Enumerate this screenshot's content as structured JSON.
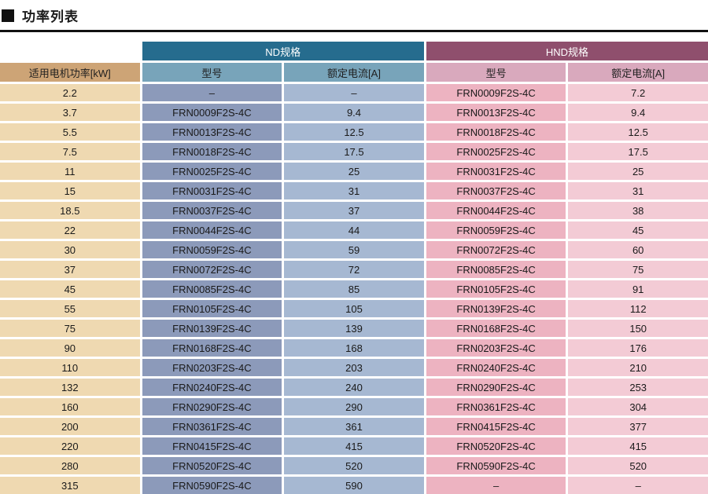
{
  "page": {
    "title_bullet": "■",
    "title": "功率列表"
  },
  "table": {
    "groups": {
      "nd": "ND规格",
      "hnd": "HND规格"
    },
    "column_headers": {
      "power": "适用电机功率[kW]",
      "model": "型号",
      "current": "额定电流[A]"
    },
    "rows": [
      {
        "power": "2.2",
        "nd_model": "–",
        "nd_current": "–",
        "hnd_model": "FRN0009F2S-4C",
        "hnd_current": "7.2"
      },
      {
        "power": "3.7",
        "nd_model": "FRN0009F2S-4C",
        "nd_current": "9.4",
        "hnd_model": "FRN0013F2S-4C",
        "hnd_current": "9.4"
      },
      {
        "power": "5.5",
        "nd_model": "FRN0013F2S-4C",
        "nd_current": "12.5",
        "hnd_model": "FRN0018F2S-4C",
        "hnd_current": "12.5"
      },
      {
        "power": "7.5",
        "nd_model": "FRN0018F2S-4C",
        "nd_current": "17.5",
        "hnd_model": "FRN0025F2S-4C",
        "hnd_current": "17.5"
      },
      {
        "power": "11",
        "nd_model": "FRN0025F2S-4C",
        "nd_current": "25",
        "hnd_model": "FRN0031F2S-4C",
        "hnd_current": "25"
      },
      {
        "power": "15",
        "nd_model": "FRN0031F2S-4C",
        "nd_current": "31",
        "hnd_model": "FRN0037F2S-4C",
        "hnd_current": "31"
      },
      {
        "power": "18.5",
        "nd_model": "FRN0037F2S-4C",
        "nd_current": "37",
        "hnd_model": "FRN0044F2S-4C",
        "hnd_current": "38"
      },
      {
        "power": "22",
        "nd_model": "FRN0044F2S-4C",
        "nd_current": "44",
        "hnd_model": "FRN0059F2S-4C",
        "hnd_current": "45"
      },
      {
        "power": "30",
        "nd_model": "FRN0059F2S-4C",
        "nd_current": "59",
        "hnd_model": "FRN0072F2S-4C",
        "hnd_current": "60"
      },
      {
        "power": "37",
        "nd_model": "FRN0072F2S-4C",
        "nd_current": "72",
        "hnd_model": "FRN0085F2S-4C",
        "hnd_current": "75"
      },
      {
        "power": "45",
        "nd_model": "FRN0085F2S-4C",
        "nd_current": "85",
        "hnd_model": "FRN0105F2S-4C",
        "hnd_current": "91"
      },
      {
        "power": "55",
        "nd_model": "FRN0105F2S-4C",
        "nd_current": "105",
        "hnd_model": "FRN0139F2S-4C",
        "hnd_current": "112"
      },
      {
        "power": "75",
        "nd_model": "FRN0139F2S-4C",
        "nd_current": "139",
        "hnd_model": "FRN0168F2S-4C",
        "hnd_current": "150"
      },
      {
        "power": "90",
        "nd_model": "FRN0168F2S-4C",
        "nd_current": "168",
        "hnd_model": "FRN0203F2S-4C",
        "hnd_current": "176"
      },
      {
        "power": "110",
        "nd_model": "FRN0203F2S-4C",
        "nd_current": "203",
        "hnd_model": "FRN0240F2S-4C",
        "hnd_current": "210"
      },
      {
        "power": "132",
        "nd_model": "FRN0240F2S-4C",
        "nd_current": "240",
        "hnd_model": "FRN0290F2S-4C",
        "hnd_current": "253"
      },
      {
        "power": "160",
        "nd_model": "FRN0290F2S-4C",
        "nd_current": "290",
        "hnd_model": "FRN0361F2S-4C",
        "hnd_current": "304"
      },
      {
        "power": "200",
        "nd_model": "FRN0361F2S-4C",
        "nd_current": "361",
        "hnd_model": "FRN0415F2S-4C",
        "hnd_current": "377"
      },
      {
        "power": "220",
        "nd_model": "FRN0415F2S-4C",
        "nd_current": "415",
        "hnd_model": "FRN0520F2S-4C",
        "hnd_current": "415"
      },
      {
        "power": "280",
        "nd_model": "FRN0520F2S-4C",
        "nd_current": "520",
        "hnd_model": "FRN0590F2S-4C",
        "hnd_current": "520"
      },
      {
        "power": "315",
        "nd_model": "FRN0590F2S-4C",
        "nd_current": "590",
        "hnd_model": "–",
        "hnd_current": "–"
      }
    ],
    "colors": {
      "nd_group_bg": "#266c8e",
      "hnd_group_bg": "#8f4f6d",
      "power_header_bg": "#cda476",
      "nd_sub_bg": "#78a4ba",
      "hnd_sub_bg": "#d9a9bd",
      "power_cell_bg": "#efd9b1",
      "nd_model_bg": "#8c9aba",
      "nd_current_bg": "#a6b8d2",
      "hnd_model_bg": "#edb3c1",
      "hnd_current_bg": "#f3cbd5"
    }
  }
}
